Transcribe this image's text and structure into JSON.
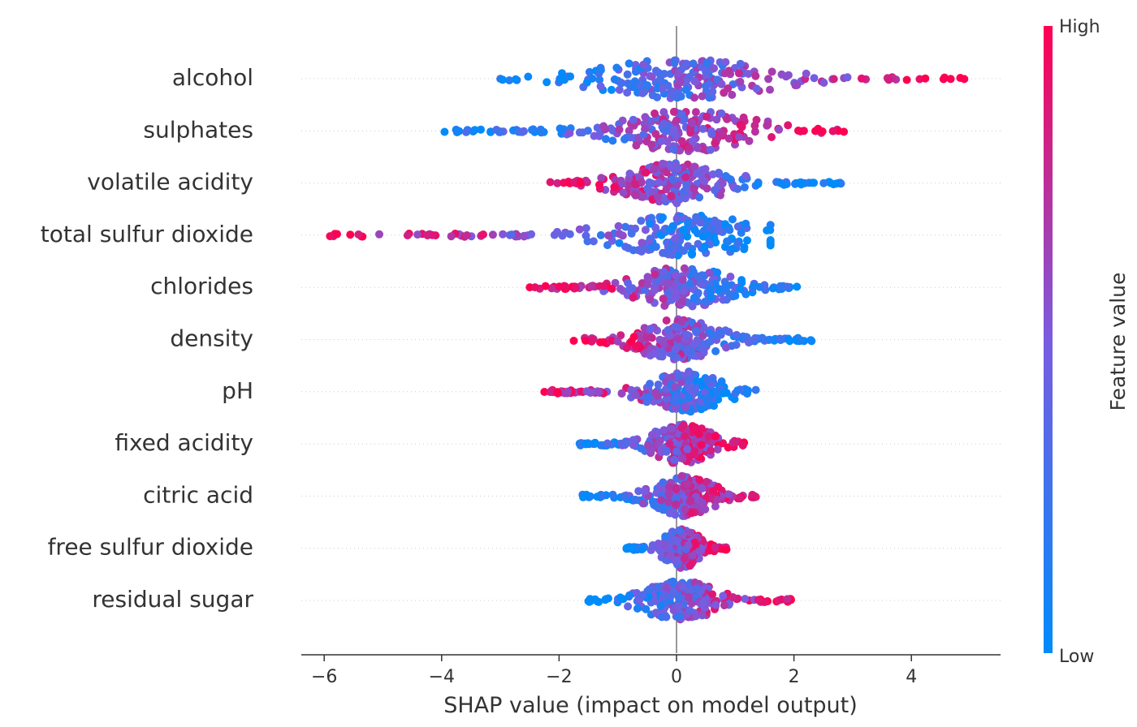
{
  "chart_data": {
    "type": "scatter",
    "subtype": "shap-beeswarm",
    "xlabel": "SHAP value (impact on model output)",
    "xlim": [
      -6.4,
      5.4
    ],
    "xticks": [
      -6,
      -4,
      -2,
      0,
      2,
      4
    ],
    "xtick_labels": [
      "−6",
      "−4",
      "−2",
      "0",
      "2",
      "4"
    ],
    "colorbar": {
      "title": "Feature value",
      "high_label": "High",
      "low_label": "Low",
      "low_color": "#008bfb",
      "high_color": "#ff0051"
    },
    "features": [
      {
        "name": "alcohol",
        "min": -3.0,
        "max": 4.9,
        "density_peak": 0.15,
        "color_trend": 1
      },
      {
        "name": "sulphates",
        "min": -3.95,
        "max": 2.85,
        "density_peak": 0.2,
        "color_trend": 1
      },
      {
        "name": "volatile acidity",
        "min": -2.15,
        "max": 2.8,
        "density_peak": 0.0,
        "color_trend": -1
      },
      {
        "name": "total sulfur dioxide",
        "min": -5.9,
        "max": 1.6,
        "density_peak": 0.15,
        "color_trend": -1
      },
      {
        "name": "chlorides",
        "min": -2.5,
        "max": 2.05,
        "density_peak": 0.1,
        "color_trend": -1
      },
      {
        "name": "density",
        "min": -1.75,
        "max": 2.3,
        "density_peak": 0.0,
        "color_trend": -1
      },
      {
        "name": "pH",
        "min": -2.25,
        "max": 1.35,
        "density_peak": 0.15,
        "color_trend": -1
      },
      {
        "name": "fixed acidity",
        "min": -1.65,
        "max": 1.15,
        "density_peak": 0.1,
        "color_trend": 1
      },
      {
        "name": "citric acid",
        "min": -1.6,
        "max": 1.35,
        "density_peak": 0.1,
        "color_trend": 1
      },
      {
        "name": "free sulfur dioxide",
        "min": -0.85,
        "max": 0.85,
        "density_peak": 0.1,
        "color_trend": 1
      },
      {
        "name": "residual sugar",
        "min": -1.5,
        "max": 1.95,
        "density_peak": 0.05,
        "color_trend": 1
      }
    ]
  }
}
